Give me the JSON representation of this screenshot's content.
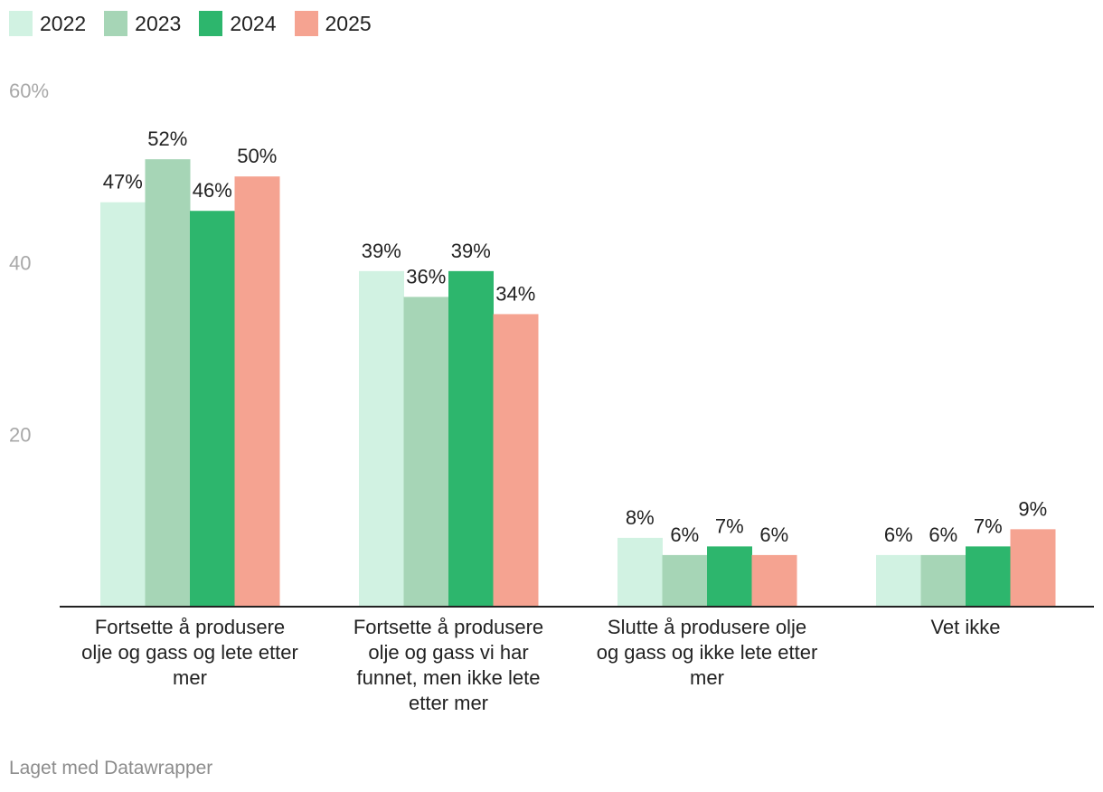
{
  "chart_data": {
    "type": "bar",
    "categories": [
      "Fortsette å produsere olje og gass og lete etter mer",
      "Fortsette å produsere olje og gass vi har funnet, men ikke lete etter mer",
      "Slutte å produsere olje og gass og ikke lete etter mer",
      "Vet ikke"
    ],
    "series": [
      {
        "name": "2022",
        "color": "#d1f2e2",
        "values": [
          47,
          39,
          8,
          6
        ],
        "labels": [
          "47%",
          "39%",
          "8%",
          "6%"
        ]
      },
      {
        "name": "2023",
        "color": "#a6d5b6",
        "values": [
          52,
          36,
          6,
          6
        ],
        "labels": [
          "52%",
          "36%",
          "6%",
          "6%"
        ]
      },
      {
        "name": "2024",
        "color": "#2db66d",
        "values": [
          46,
          39,
          7,
          7
        ],
        "labels": [
          "46%",
          "39%",
          "7%",
          "7%"
        ]
      },
      {
        "name": "2025",
        "color": "#f5a391",
        "values": [
          50,
          34,
          6,
          9
        ],
        "labels": [
          "50%",
          "34%",
          "6%",
          "9%"
        ]
      }
    ],
    "y_ticks": [
      "20",
      "40",
      "60%"
    ],
    "y_tick_values": [
      20,
      40,
      60
    ],
    "ylim": [
      0,
      60
    ],
    "grid": false,
    "legend_position": "top-left"
  },
  "footer": {
    "credit": "Laget med Datawrapper"
  }
}
